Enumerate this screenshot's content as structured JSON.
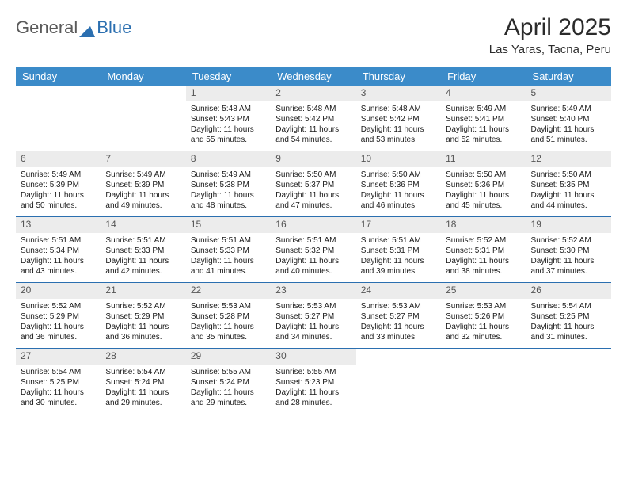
{
  "brand": {
    "part1": "General",
    "part2": "Blue"
  },
  "title": "April 2025",
  "location": "Las Yaras, Tacna, Peru",
  "colors": {
    "header_bg": "#3b8bc9",
    "rule": "#2b6fb0",
    "daynum_bg": "#ececec",
    "text": "#1a1a1a",
    "page_bg": "#ffffff"
  },
  "dayNames": [
    "Sunday",
    "Monday",
    "Tuesday",
    "Wednesday",
    "Thursday",
    "Friday",
    "Saturday"
  ],
  "weeks": [
    [
      null,
      null,
      {
        "n": "1",
        "sr": "5:48 AM",
        "ss": "5:43 PM",
        "dl": "11 hours and 55 minutes."
      },
      {
        "n": "2",
        "sr": "5:48 AM",
        "ss": "5:42 PM",
        "dl": "11 hours and 54 minutes."
      },
      {
        "n": "3",
        "sr": "5:48 AM",
        "ss": "5:42 PM",
        "dl": "11 hours and 53 minutes."
      },
      {
        "n": "4",
        "sr": "5:49 AM",
        "ss": "5:41 PM",
        "dl": "11 hours and 52 minutes."
      },
      {
        "n": "5",
        "sr": "5:49 AM",
        "ss": "5:40 PM",
        "dl": "11 hours and 51 minutes."
      }
    ],
    [
      {
        "n": "6",
        "sr": "5:49 AM",
        "ss": "5:39 PM",
        "dl": "11 hours and 50 minutes."
      },
      {
        "n": "7",
        "sr": "5:49 AM",
        "ss": "5:39 PM",
        "dl": "11 hours and 49 minutes."
      },
      {
        "n": "8",
        "sr": "5:49 AM",
        "ss": "5:38 PM",
        "dl": "11 hours and 48 minutes."
      },
      {
        "n": "9",
        "sr": "5:50 AM",
        "ss": "5:37 PM",
        "dl": "11 hours and 47 minutes."
      },
      {
        "n": "10",
        "sr": "5:50 AM",
        "ss": "5:36 PM",
        "dl": "11 hours and 46 minutes."
      },
      {
        "n": "11",
        "sr": "5:50 AM",
        "ss": "5:36 PM",
        "dl": "11 hours and 45 minutes."
      },
      {
        "n": "12",
        "sr": "5:50 AM",
        "ss": "5:35 PM",
        "dl": "11 hours and 44 minutes."
      }
    ],
    [
      {
        "n": "13",
        "sr": "5:51 AM",
        "ss": "5:34 PM",
        "dl": "11 hours and 43 minutes."
      },
      {
        "n": "14",
        "sr": "5:51 AM",
        "ss": "5:33 PM",
        "dl": "11 hours and 42 minutes."
      },
      {
        "n": "15",
        "sr": "5:51 AM",
        "ss": "5:33 PM",
        "dl": "11 hours and 41 minutes."
      },
      {
        "n": "16",
        "sr": "5:51 AM",
        "ss": "5:32 PM",
        "dl": "11 hours and 40 minutes."
      },
      {
        "n": "17",
        "sr": "5:51 AM",
        "ss": "5:31 PM",
        "dl": "11 hours and 39 minutes."
      },
      {
        "n": "18",
        "sr": "5:52 AM",
        "ss": "5:31 PM",
        "dl": "11 hours and 38 minutes."
      },
      {
        "n": "19",
        "sr": "5:52 AM",
        "ss": "5:30 PM",
        "dl": "11 hours and 37 minutes."
      }
    ],
    [
      {
        "n": "20",
        "sr": "5:52 AM",
        "ss": "5:29 PM",
        "dl": "11 hours and 36 minutes."
      },
      {
        "n": "21",
        "sr": "5:52 AM",
        "ss": "5:29 PM",
        "dl": "11 hours and 36 minutes."
      },
      {
        "n": "22",
        "sr": "5:53 AM",
        "ss": "5:28 PM",
        "dl": "11 hours and 35 minutes."
      },
      {
        "n": "23",
        "sr": "5:53 AM",
        "ss": "5:27 PM",
        "dl": "11 hours and 34 minutes."
      },
      {
        "n": "24",
        "sr": "5:53 AM",
        "ss": "5:27 PM",
        "dl": "11 hours and 33 minutes."
      },
      {
        "n": "25",
        "sr": "5:53 AM",
        "ss": "5:26 PM",
        "dl": "11 hours and 32 minutes."
      },
      {
        "n": "26",
        "sr": "5:54 AM",
        "ss": "5:25 PM",
        "dl": "11 hours and 31 minutes."
      }
    ],
    [
      {
        "n": "27",
        "sr": "5:54 AM",
        "ss": "5:25 PM",
        "dl": "11 hours and 30 minutes."
      },
      {
        "n": "28",
        "sr": "5:54 AM",
        "ss": "5:24 PM",
        "dl": "11 hours and 29 minutes."
      },
      {
        "n": "29",
        "sr": "5:55 AM",
        "ss": "5:24 PM",
        "dl": "11 hours and 29 minutes."
      },
      {
        "n": "30",
        "sr": "5:55 AM",
        "ss": "5:23 PM",
        "dl": "11 hours and 28 minutes."
      },
      null,
      null,
      null
    ]
  ],
  "labels": {
    "sunrise": "Sunrise:",
    "sunset": "Sunset:",
    "daylight": "Daylight:"
  }
}
